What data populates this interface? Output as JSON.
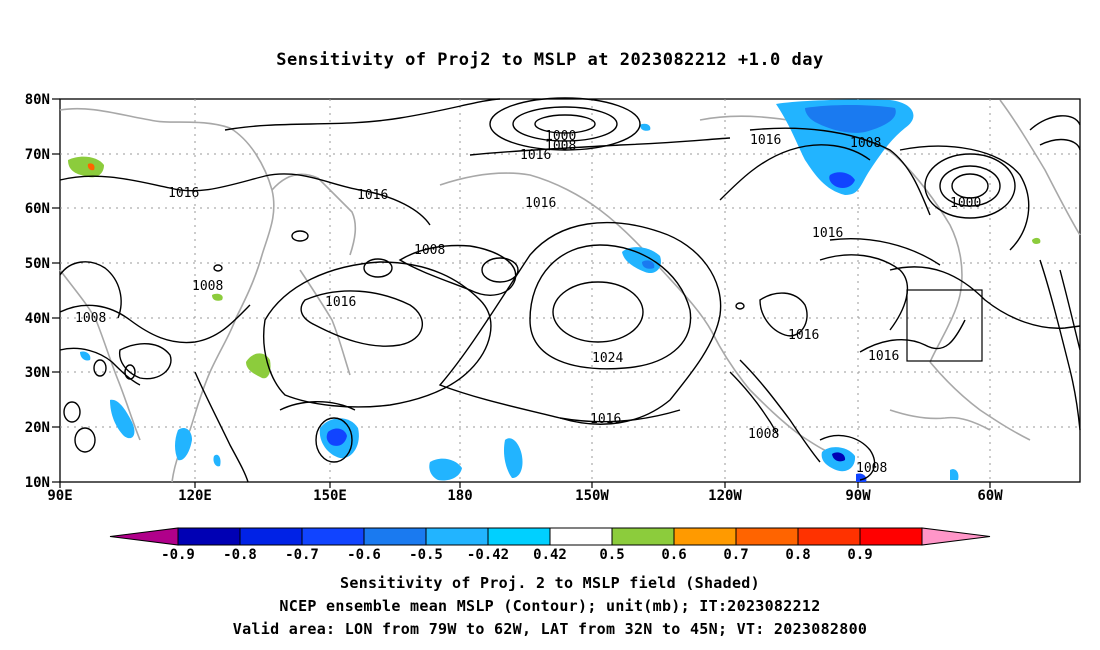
{
  "title": "Sensitivity of Proj2 to MSLP at 2023082212 +1.0 day",
  "lat_labels": [
    "80N",
    "70N",
    "60N",
    "50N",
    "40N",
    "30N",
    "20N",
    "10N"
  ],
  "lon_labels": [
    "90E",
    "120E",
    "150E",
    "180",
    "150W",
    "120W",
    "90W",
    "60W"
  ],
  "contour_labels": [
    "1000",
    "1008",
    "1016",
    "1016",
    "1016",
    "1016",
    "1008",
    "1016",
    "1000",
    "1008",
    "1016",
    "1016",
    "1008",
    "1008",
    "1016",
    "1024",
    "1016",
    "1016",
    "1008",
    "1008"
  ],
  "colorbar": {
    "labels": [
      "-0.9",
      "-0.8",
      "-0.7",
      "-0.6",
      "-0.5",
      "-0.42",
      "0.42",
      "0.5",
      "0.6",
      "0.7",
      "0.8",
      "0.9"
    ],
    "colors": [
      "#b0008a",
      "#0000b4",
      "#0022e6",
      "#1144ff",
      "#1a7af0",
      "#22b4ff",
      "#00d0ff",
      "#ffffff",
      "#8ccc3c",
      "#ff9a00",
      "#ff6400",
      "#ff3200",
      "#ff0000",
      "#ff96c8"
    ]
  },
  "footer": {
    "line1": "Sensitivity of Proj. 2 to MSLP field (Shaded)",
    "line2": "NCEP ensemble mean MSLP (Contour); unit(mb); IT:2023082212",
    "line3": "Valid area: LON from 79W to 62W, LAT from 32N to 45N; VT: 2023082800"
  }
}
